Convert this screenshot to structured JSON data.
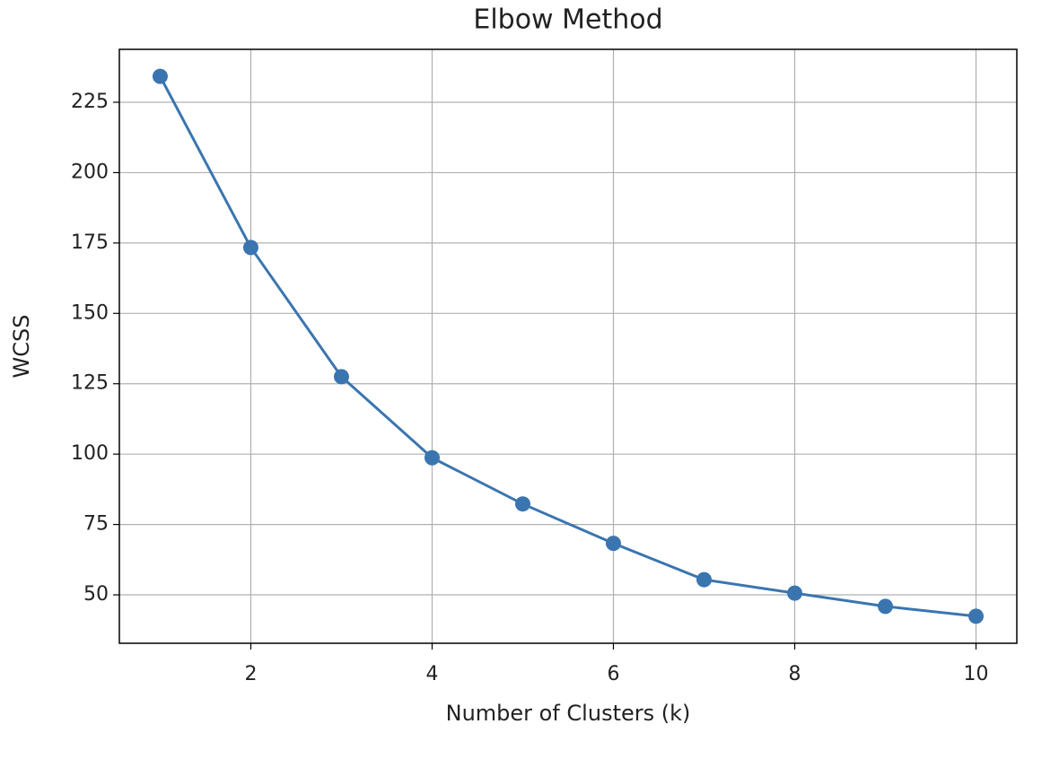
{
  "chart_data": {
    "type": "line",
    "title": "Elbow Method",
    "xlabel": "Number of Clusters (k)",
    "ylabel": "WCSS",
    "x": [
      1,
      2,
      3,
      4,
      5,
      6,
      7,
      8,
      9,
      10
    ],
    "series": [
      {
        "color": "#3a75b0",
        "values": [
          234.2,
          173.4,
          127.5,
          98.7,
          82.3,
          68.3,
          55.4,
          50.6,
          45.9,
          42.4
        ]
      }
    ],
    "xlim": [
      0.55,
      10.45
    ],
    "xticks": [
      2,
      4,
      6,
      8,
      10
    ],
    "ylim": [
      32.8,
      243.8
    ],
    "yticks": [
      50,
      75,
      100,
      125,
      150,
      175,
      200,
      225
    ],
    "grid": true,
    "marker": "circle"
  }
}
